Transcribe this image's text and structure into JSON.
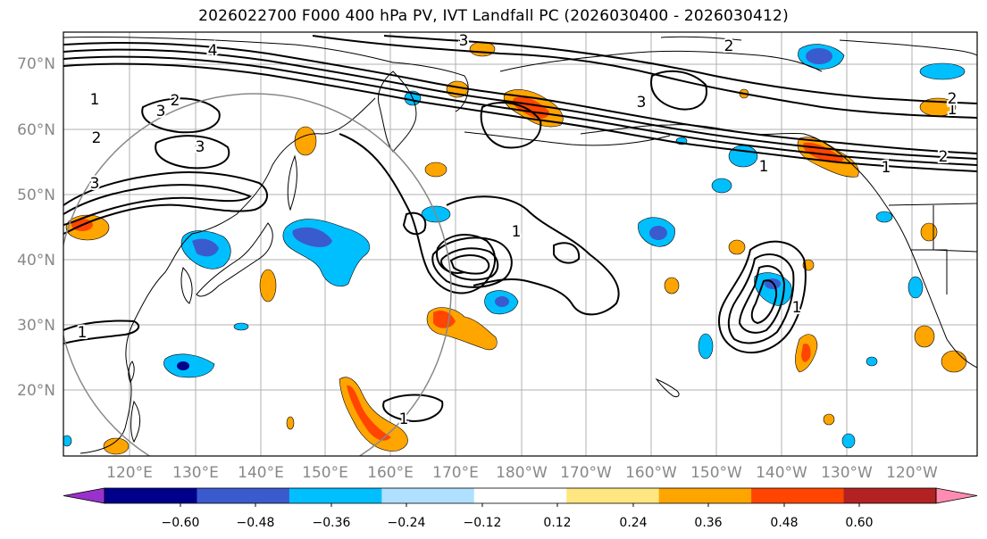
{
  "title": "2026022700 F000 400 hPa PV, IVT Landfall PC (2026030400 - 2026030412)",
  "lat_labels": [
    "70°N",
    "60°N",
    "50°N",
    "40°N",
    "30°N",
    "20°N"
  ],
  "lon_labels": [
    "120°E",
    "130°E",
    "140°E",
    "150°E",
    "160°E",
    "170°E",
    "180°W",
    "170°W",
    "160°W",
    "150°W",
    "140°W",
    "130°W",
    "120°W"
  ],
  "colorbar": {
    "ticks": [
      "−0.60",
      "−0.48",
      "−0.36",
      "−0.24",
      "−0.12",
      "0.12",
      "0.24",
      "0.36",
      "0.48",
      "0.60"
    ],
    "colors": [
      "#9932cc",
      "#00008b",
      "#3a5bcd",
      "#00bfff",
      "#b0e0ff",
      "#ffffff",
      "#ffe680",
      "#ffa500",
      "#ff4500",
      "#b22222",
      "#ff8cb0"
    ]
  },
  "contour_labels": [
    "1",
    "2",
    "3",
    "4"
  ],
  "colors": {
    "land_outline": "#000000",
    "grid": "#b0b0b0",
    "circle": "#888888"
  }
}
